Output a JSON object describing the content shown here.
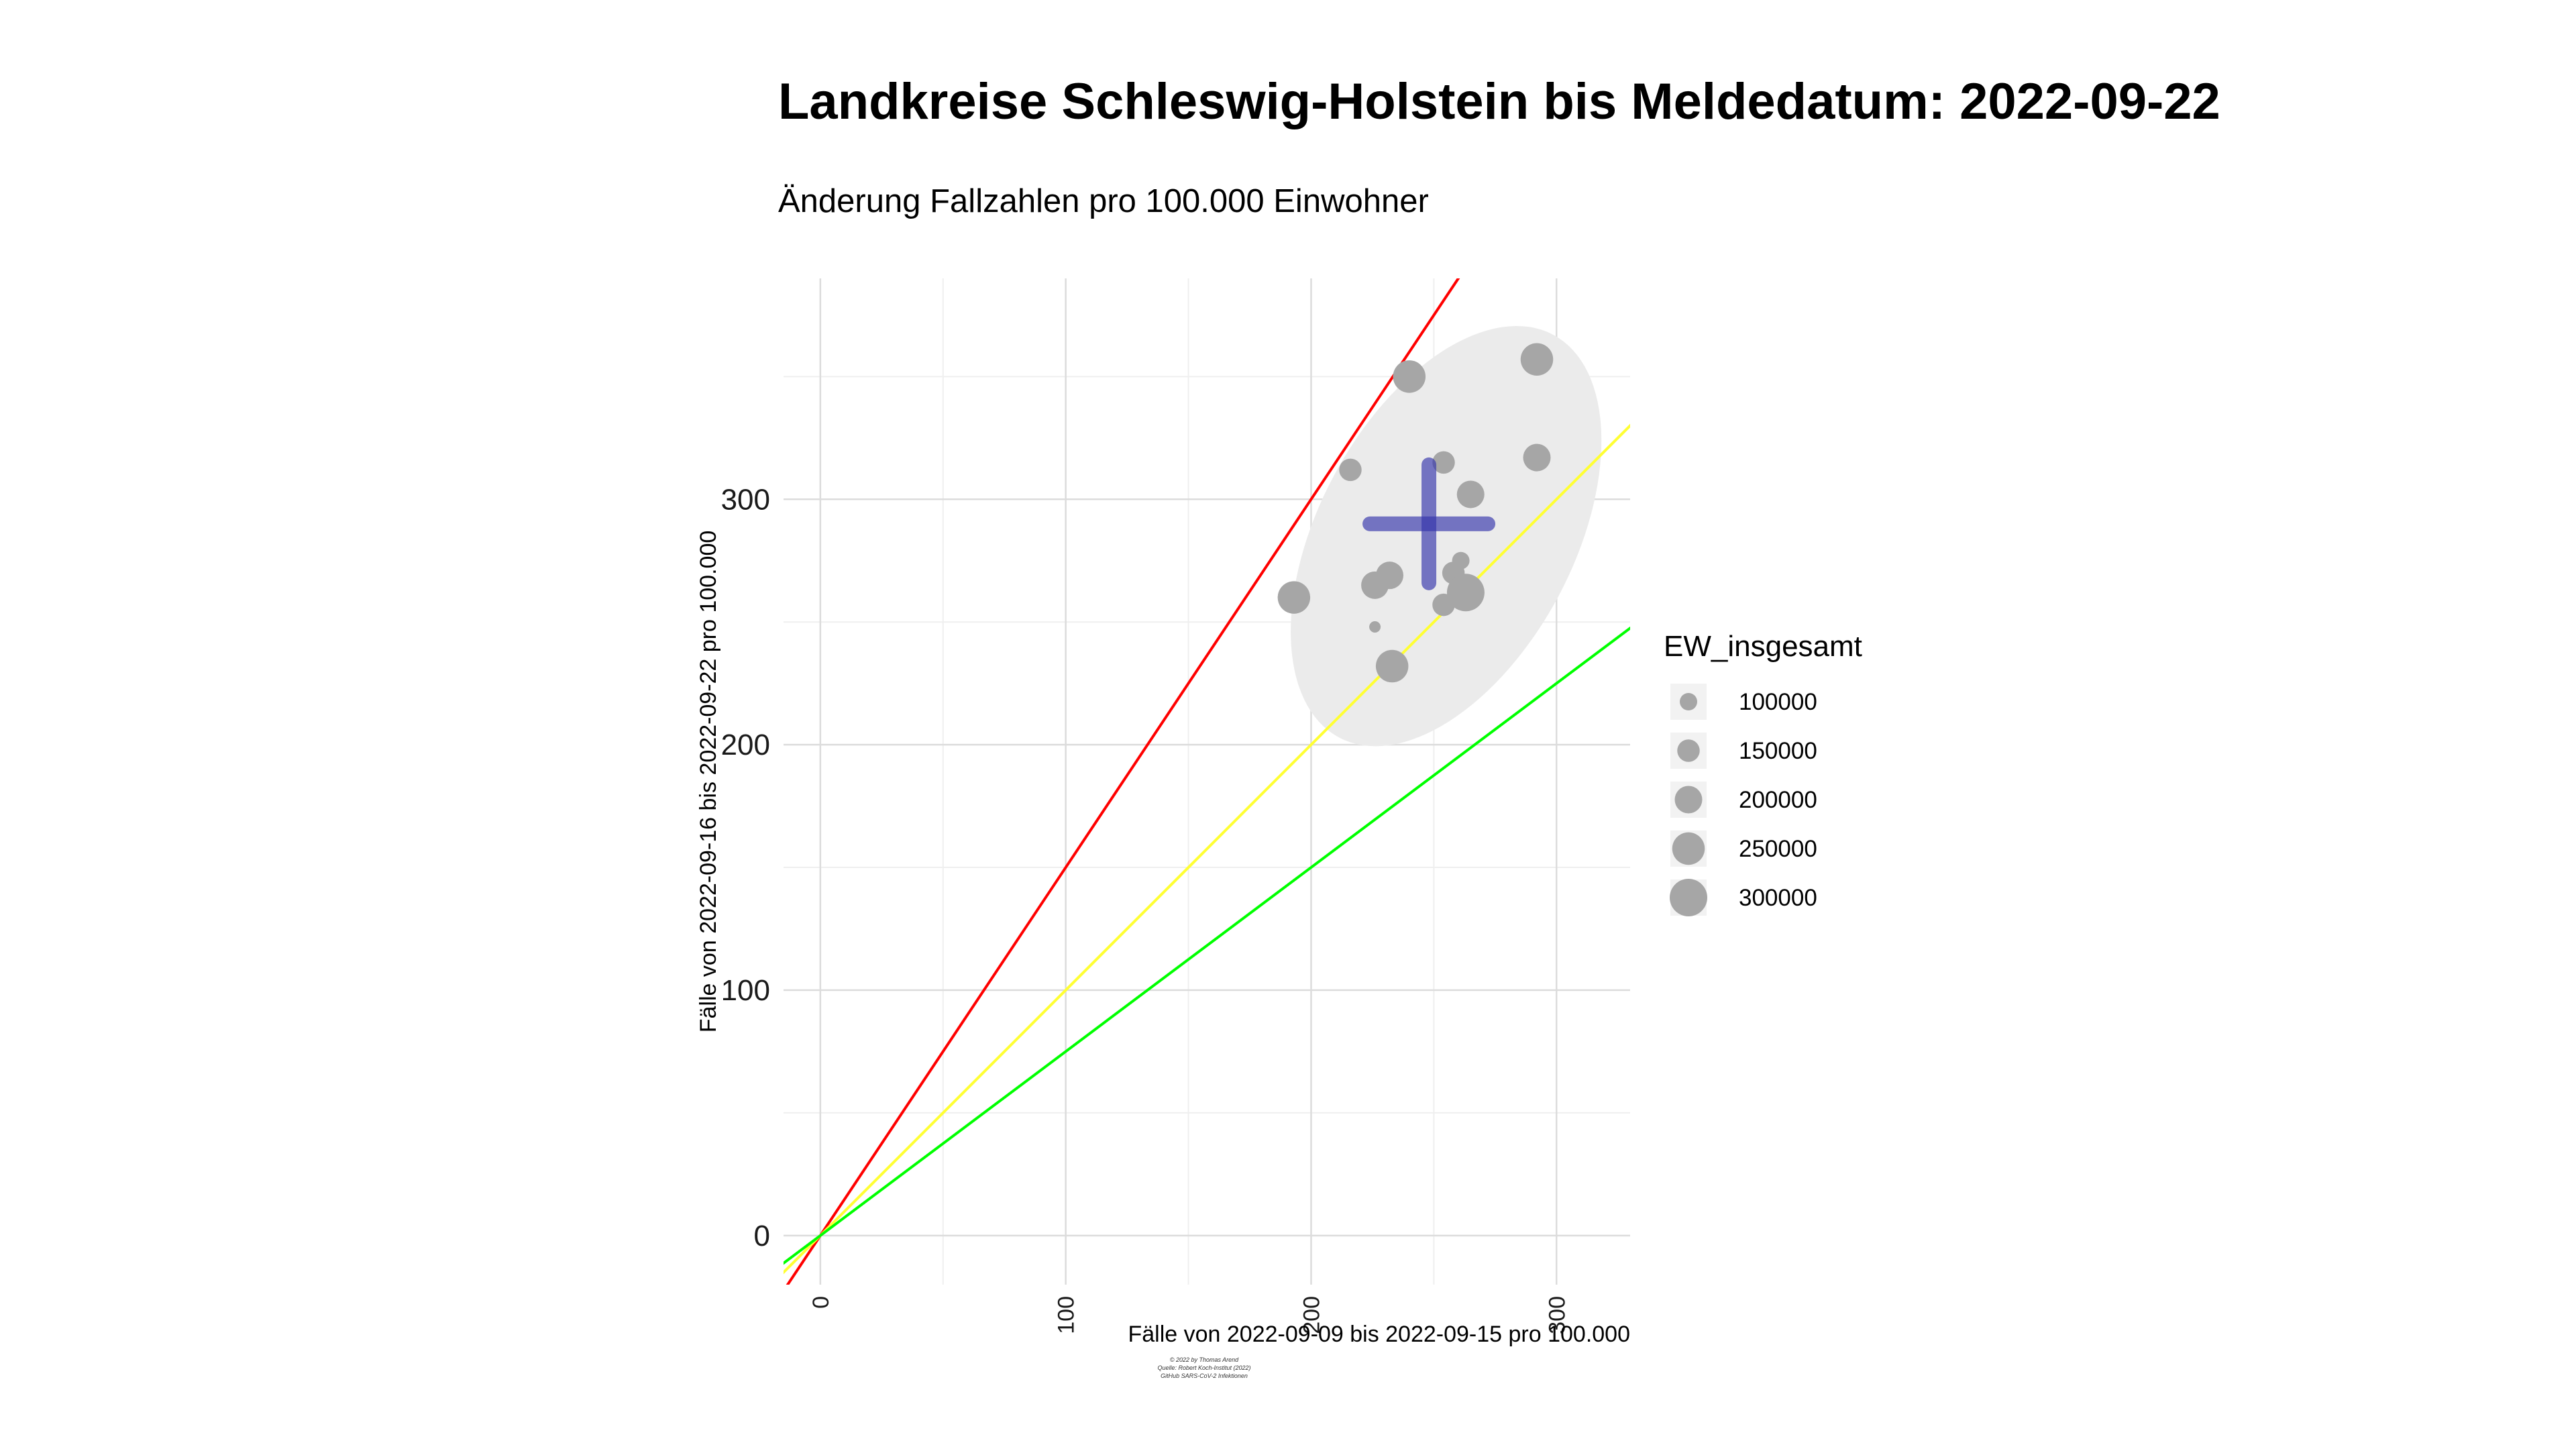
{
  "title": "Landkreise Schleswig-Holstein bis Meldedatum: 2022-09-22",
  "subtitle": "Änderung Fallzahlen pro 100.000 Einwohner",
  "credits": [
    "© 2022 by Thomas Arend",
    "Quelle: Robert Koch-Institut (2022)",
    "GitHub SARS-CoV-2 Infektionen"
  ],
  "chart_data": {
    "type": "scatter",
    "xlabel": "Fälle von 2022-09-09 bis 2022-09-15 pro 100.000",
    "ylabel": "Fälle von 2022-09-16 bis 2022-09-22 pro 100.000",
    "xlim": [
      -15,
      330
    ],
    "ylim": [
      -20,
      390
    ],
    "x_ticks": [
      "0",
      "100",
      "200",
      "300"
    ],
    "x_tick_values": [
      0,
      100,
      200,
      300
    ],
    "y_ticks": [
      "0",
      "100",
      "200",
      "300"
    ],
    "y_tick_values": [
      0,
      100,
      200,
      300
    ],
    "grid": true,
    "reference_lines": [
      {
        "slope": 1.5,
        "color": "#ff0000"
      },
      {
        "slope": 1.0,
        "color": "#ffff33"
      },
      {
        "slope": 0.75,
        "color": "#00ff00"
      }
    ],
    "points": [
      {
        "x": 240,
        "y": 350,
        "size": 250000
      },
      {
        "x": 292,
        "y": 357,
        "size": 250000
      },
      {
        "x": 216,
        "y": 312,
        "size": 150000
      },
      {
        "x": 254,
        "y": 315,
        "size": 150000
      },
      {
        "x": 292,
        "y": 317,
        "size": 200000
      },
      {
        "x": 265,
        "y": 302,
        "size": 200000
      },
      {
        "x": 261,
        "y": 275,
        "size": 100000
      },
      {
        "x": 258,
        "y": 270,
        "size": 150000
      },
      {
        "x": 226,
        "y": 265,
        "size": 200000
      },
      {
        "x": 232,
        "y": 269,
        "size": 200000
      },
      {
        "x": 193,
        "y": 260,
        "size": 250000
      },
      {
        "x": 263,
        "y": 262,
        "size": 300000
      },
      {
        "x": 254,
        "y": 257,
        "size": 150000
      },
      {
        "x": 226,
        "y": 248,
        "size": 40000
      },
      {
        "x": 233,
        "y": 232,
        "size": 250000
      }
    ],
    "mean": {
      "x": 248,
      "y": 290
    },
    "ellipse_color": "#ebebeb",
    "point_color": "#a6a6a6",
    "mean_color": "#3333aa",
    "legend": {
      "title": "EW_insgesamt",
      "position": "right",
      "entries": [
        {
          "label": "100000",
          "size": 100000
        },
        {
          "label": "150000",
          "size": 150000
        },
        {
          "label": "200000",
          "size": 200000
        },
        {
          "label": "250000",
          "size": 250000
        },
        {
          "label": "300000",
          "size": 300000
        }
      ]
    }
  }
}
